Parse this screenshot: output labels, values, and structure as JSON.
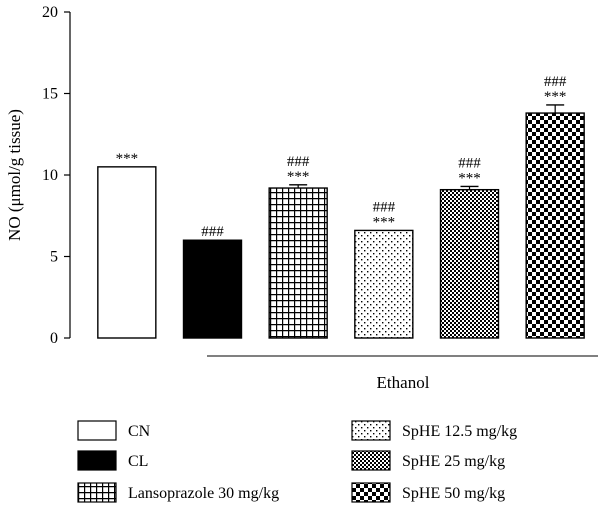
{
  "chart_data": {
    "type": "bar",
    "ylabel": "NO (μmol/g tissue)",
    "ylim": [
      0,
      20
    ],
    "yticks": [
      0,
      5,
      10,
      15,
      20
    ],
    "grid": false,
    "legend_position": "bottom",
    "group_label": "Ethanol",
    "group_members": [
      "CL",
      "Lansoprazole 30 mg/kg",
      "SpHE 12.5 mg/kg",
      "SpHE 25 mg/kg",
      "SpHE 50 mg/kg"
    ],
    "series": [
      {
        "name": "CN",
        "value": 10.5,
        "error": 0,
        "annotations": [
          "***"
        ],
        "pattern": "white"
      },
      {
        "name": "CL",
        "value": 6.0,
        "error": 0,
        "annotations": [
          "###"
        ],
        "pattern": "black"
      },
      {
        "name": "Lansoprazole 30 mg/kg",
        "value": 9.2,
        "error": 0.2,
        "annotations": [
          "###",
          "***"
        ],
        "pattern": "grid"
      },
      {
        "name": "SpHE 12.5 mg/kg",
        "value": 6.6,
        "error": 0,
        "annotations": [
          "###",
          "***"
        ],
        "pattern": "dots"
      },
      {
        "name": "SpHE 25 mg/kg",
        "value": 9.1,
        "error": 0.2,
        "annotations": [
          "###",
          "***"
        ],
        "pattern": "dense-checker"
      },
      {
        "name": "SpHE 50 mg/kg",
        "value": 13.8,
        "error": 0.5,
        "annotations": [
          "###",
          "***"
        ],
        "pattern": "checker"
      }
    ]
  }
}
